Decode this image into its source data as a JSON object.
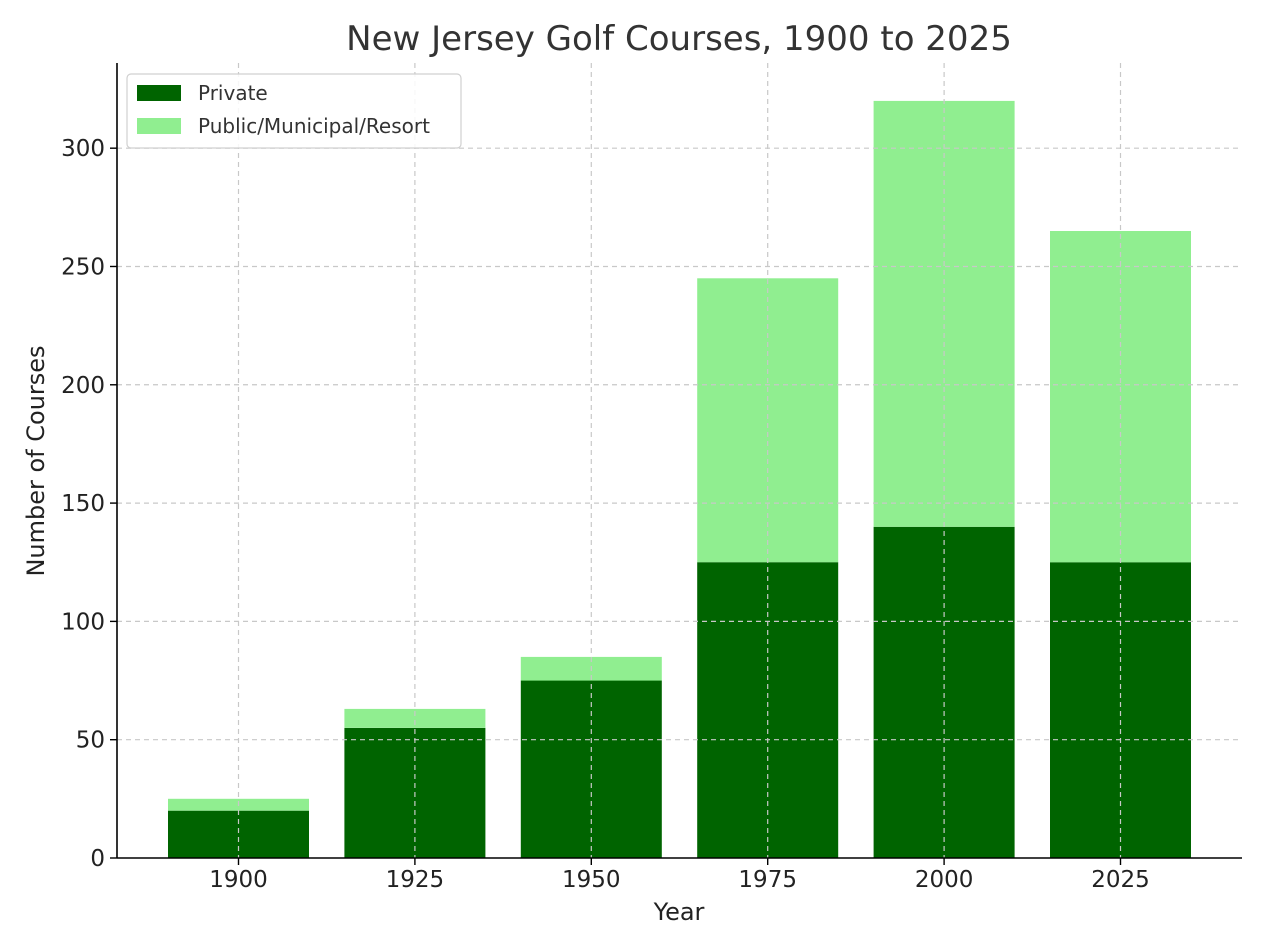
{
  "chart_data": {
    "type": "bar",
    "stacked": true,
    "title": "New Jersey Golf Courses, 1900 to 2025",
    "xlabel": "Year",
    "ylabel": "Number of Courses",
    "categories": [
      "1900",
      "1925",
      "1950",
      "1975",
      "2000",
      "2025"
    ],
    "series": [
      {
        "name": "Private",
        "values": [
          20,
          55,
          75,
          125,
          140,
          125
        ],
        "color": "#006400"
      },
      {
        "name": "Public/Municipal/Resort",
        "values": [
          5,
          8,
          10,
          120,
          180,
          140
        ],
        "color": "#90ee90"
      }
    ],
    "ylim": [
      0,
      336
    ],
    "yticks": [
      0,
      50,
      100,
      150,
      200,
      250,
      300
    ],
    "grid": true,
    "legend_position": "top-left"
  }
}
